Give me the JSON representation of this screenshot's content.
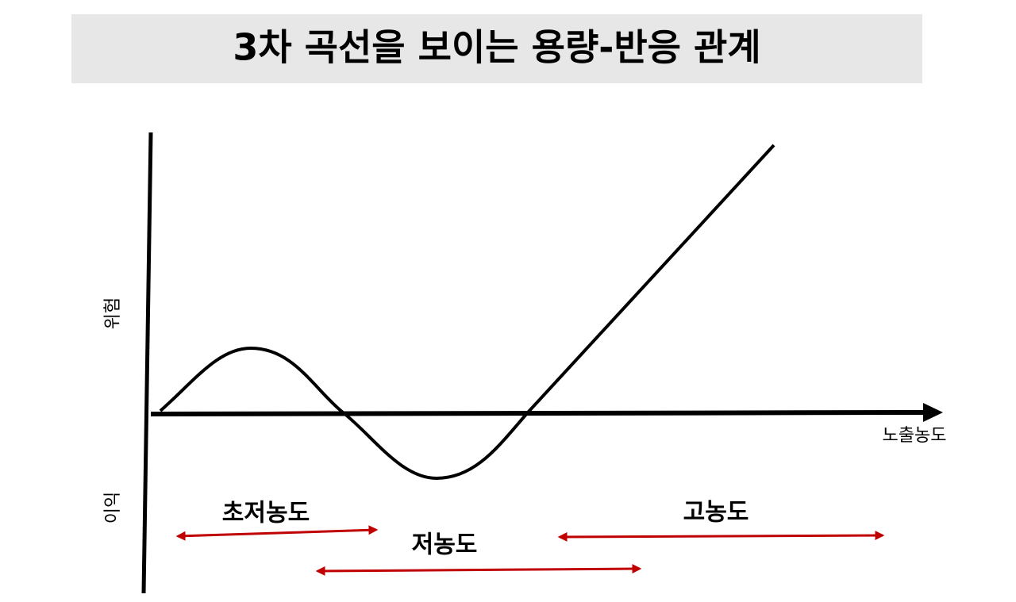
{
  "header": {
    "title": "3차 곡선을 보이는 용량-반응 관계"
  },
  "axes": {
    "y_top_label": "위험",
    "y_bottom_label": "이익",
    "x_label": "노출농도"
  },
  "ranges": [
    {
      "label": "초저농도"
    },
    {
      "label": "저농도"
    },
    {
      "label": "고농도"
    }
  ]
}
